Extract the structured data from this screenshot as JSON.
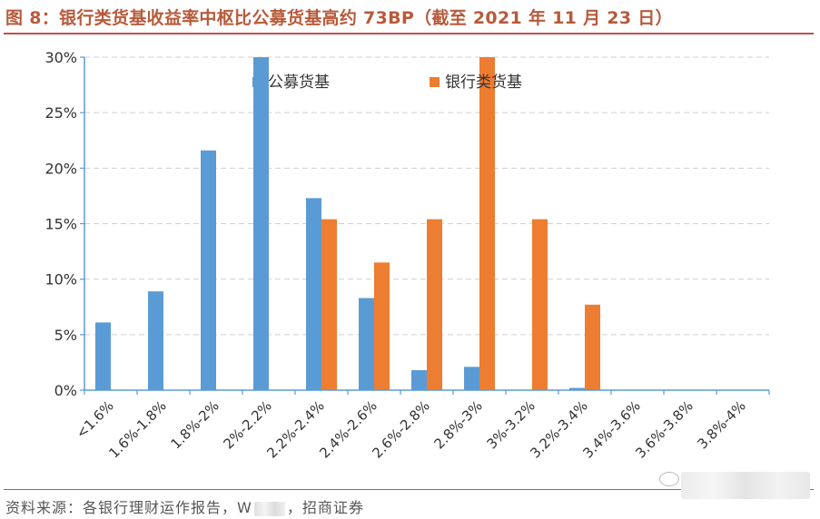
{
  "header": {
    "title": "图 8：银行类货基收益率中枢比公募货基高约 73BP（截至 2021 年 11 月 23 日）"
  },
  "footer": {
    "source_prefix": "资料来源：各银行理财运作报告，W",
    "source_suffix": "，招商证券"
  },
  "chart_data": {
    "type": "bar",
    "title": "",
    "xlabel": "",
    "ylabel": "",
    "ylim": [
      0,
      0.3
    ],
    "yticks": [
      0,
      0.05,
      0.1,
      0.15,
      0.2,
      0.25,
      0.3
    ],
    "ytick_labels": [
      "0%",
      "5%",
      "10%",
      "15%",
      "20%",
      "25%",
      "30%"
    ],
    "grid": true,
    "legend_position": "top",
    "categories": [
      "<1.6%",
      "1.6%-1.8%",
      "1.8%-2%",
      "2%-2.2%",
      "2.2%-2.4%",
      "2.4%-2.6%",
      "2.6%-2.8%",
      "2.8%-3%",
      "3%-3.2%",
      "3.2%-3.4%",
      "3.4%-3.6%",
      "3.6%-3.8%",
      "3.8%-4%"
    ],
    "series": [
      {
        "name": "公募货基",
        "color": "#5b9bd5",
        "values": [
          0.061,
          0.089,
          0.216,
          0.3,
          0.173,
          0.083,
          0.018,
          0.021,
          0.0,
          0.002,
          0.0,
          0.0,
          0.0
        ]
      },
      {
        "name": "银行类货基",
        "color": "#ed7d31",
        "values": [
          0.0,
          0.0,
          0.0,
          0.0,
          0.154,
          0.115,
          0.154,
          0.3,
          0.154,
          0.077,
          0.0,
          0.0,
          0.0
        ]
      }
    ]
  }
}
